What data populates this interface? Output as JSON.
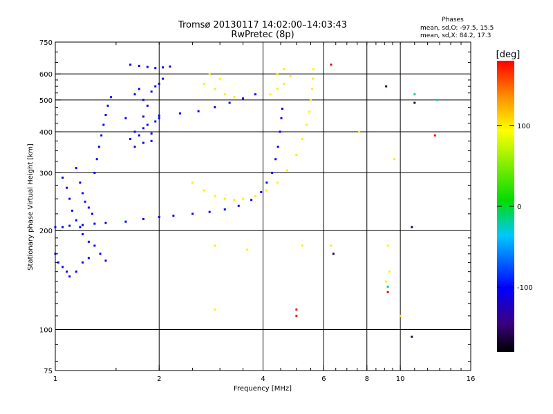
{
  "chart_data": {
    "type": "scatter",
    "title": "Tromsø 20130117 14:02:00–14:03:43",
    "subtitle": "RwPretec (8p)",
    "stats": {
      "heading": "Phases",
      "line1": "mean, sd,O: -97.5, 15.5",
      "line2": "mean, sd,X:  84.2, 17.3"
    },
    "xlabel": "Frequency [MHz]",
    "ylabel": "Stationary phase Virtual Height [km]",
    "x_scale": "log",
    "y_scale": "log",
    "xlim": [
      1,
      16
    ],
    "ylim": [
      75,
      750
    ],
    "x_ticks": [
      1,
      2,
      4,
      6,
      8,
      10,
      16
    ],
    "x_tick_labels": [
      "1",
      "2",
      "4",
      "6",
      "8",
      "10",
      "16"
    ],
    "x_gridlines": [
      2,
      4,
      6,
      8,
      10
    ],
    "y_ticks": [
      75,
      100,
      200,
      300,
      400,
      500,
      600,
      750
    ],
    "y_tick_labels": [
      "75",
      "100",
      "200",
      "300",
      "400",
      "500",
      "600",
      "750"
    ],
    "y_gridlines": [
      100,
      200,
      300,
      400,
      500,
      600
    ],
    "colorbar": {
      "label": "[deg]",
      "range": [
        -180,
        180
      ],
      "ticks": [
        100,
        0,
        -100
      ],
      "tick_labels": [
        "100",
        "0",
        "-100"
      ]
    },
    "traces": [
      {
        "name": "",
        "phase": -100,
        "points": [
          [
            1.0,
            205
          ],
          [
            1.05,
            205
          ],
          [
            1.1,
            207
          ],
          [
            1.2,
            208
          ],
          [
            1.3,
            210
          ],
          [
            1.4,
            211
          ],
          [
            1.6,
            213
          ],
          [
            1.8,
            217
          ],
          [
            2.0,
            220
          ],
          [
            2.2,
            222
          ],
          [
            2.5,
            225
          ],
          [
            2.8,
            228
          ],
          [
            3.1,
            232
          ],
          [
            3.4,
            238
          ],
          [
            3.7,
            248
          ],
          [
            3.95,
            262
          ],
          [
            4.1,
            280
          ],
          [
            4.25,
            300
          ],
          [
            4.35,
            330
          ],
          [
            4.42,
            360
          ],
          [
            4.48,
            400
          ],
          [
            4.52,
            440
          ],
          [
            4.55,
            470
          ]
        ]
      },
      {
        "name": "",
        "phase": -100,
        "points": [
          [
            1.6,
            440
          ],
          [
            1.8,
            445
          ],
          [
            2.0,
            448
          ],
          [
            2.3,
            455
          ],
          [
            2.6,
            462
          ],
          [
            2.9,
            475
          ],
          [
            3.2,
            490
          ],
          [
            3.5,
            505
          ],
          [
            3.8,
            520
          ]
        ]
      },
      {
        "name": "",
        "phase": -100,
        "points": [
          [
            1.05,
            290
          ],
          [
            1.08,
            270
          ],
          [
            1.1,
            250
          ],
          [
            1.12,
            230
          ],
          [
            1.15,
            215
          ],
          [
            1.18,
            205
          ],
          [
            1.2,
            195
          ],
          [
            1.25,
            185
          ],
          [
            1.3,
            180
          ],
          [
            1.35,
            170
          ],
          [
            1.4,
            162
          ]
        ]
      },
      {
        "name": "",
        "phase": -100,
        "points": [
          [
            1.0,
            170
          ],
          [
            1.02,
            160
          ],
          [
            1.05,
            155
          ],
          [
            1.08,
            150
          ],
          [
            1.1,
            145
          ],
          [
            1.15,
            150
          ],
          [
            1.2,
            160
          ],
          [
            1.25,
            165
          ]
        ]
      },
      {
        "name": "",
        "phase": -100,
        "points": [
          [
            1.3,
            300
          ],
          [
            1.32,
            330
          ],
          [
            1.34,
            360
          ],
          [
            1.36,
            390
          ],
          [
            1.38,
            420
          ],
          [
            1.4,
            450
          ],
          [
            1.42,
            480
          ],
          [
            1.45,
            510
          ]
        ]
      },
      {
        "name": "",
        "phase": -100,
        "points": [
          [
            1.15,
            310
          ],
          [
            1.18,
            280
          ],
          [
            1.2,
            260
          ],
          [
            1.22,
            245
          ],
          [
            1.25,
            235
          ],
          [
            1.28,
            225
          ]
        ]
      },
      {
        "name": "",
        "phase": -100,
        "points": [
          [
            1.65,
            380
          ],
          [
            1.7,
            400
          ],
          [
            1.75,
            390
          ],
          [
            1.8,
            410
          ],
          [
            1.85,
            420
          ],
          [
            1.9,
            395
          ],
          [
            1.95,
            430
          ],
          [
            2.0,
            440
          ],
          [
            1.7,
            360
          ],
          [
            1.8,
            370
          ],
          [
            1.9,
            375
          ]
        ]
      },
      {
        "name": "",
        "phase": -100,
        "points": [
          [
            1.7,
            520
          ],
          [
            1.75,
            540
          ],
          [
            1.8,
            500
          ],
          [
            1.85,
            480
          ],
          [
            1.9,
            530
          ],
          [
            1.95,
            550
          ],
          [
            2.0,
            560
          ],
          [
            2.05,
            580
          ]
        ]
      },
      {
        "name": "",
        "phase": -100,
        "points": [
          [
            1.65,
            640
          ],
          [
            1.75,
            635
          ],
          [
            1.85,
            630
          ],
          [
            1.95,
            625
          ],
          [
            2.05,
            628
          ],
          [
            2.15,
            632
          ]
        ]
      },
      {
        "name": "",
        "phase": 100,
        "points": [
          [
            2.5,
            280
          ],
          [
            2.7,
            265
          ],
          [
            2.9,
            255
          ],
          [
            3.1,
            250
          ],
          [
            3.3,
            248
          ],
          [
            3.5,
            250
          ],
          [
            3.8,
            255
          ],
          [
            4.1,
            265
          ],
          [
            4.4,
            280
          ],
          [
            4.7,
            305
          ],
          [
            5.0,
            340
          ],
          [
            5.2,
            380
          ],
          [
            5.35,
            420
          ],
          [
            5.45,
            460
          ],
          [
            5.5,
            500
          ],
          [
            5.55,
            540
          ],
          [
            5.58,
            580
          ],
          [
            5.6,
            620
          ]
        ]
      },
      {
        "name": "",
        "phase": 100,
        "points": [
          [
            4.2,
            520
          ],
          [
            4.4,
            540
          ],
          [
            4.6,
            560
          ],
          [
            4.8,
            590
          ],
          [
            4.6,
            620
          ],
          [
            4.4,
            600
          ]
        ]
      },
      {
        "name": "",
        "phase": 100,
        "points": [
          [
            2.7,
            560
          ],
          [
            2.9,
            540
          ],
          [
            3.1,
            520
          ],
          [
            3.3,
            510
          ],
          [
            2.8,
            600
          ],
          [
            3.0,
            580
          ]
        ]
      },
      {
        "name": "",
        "phase": 100,
        "points": [
          [
            2.9,
            180
          ],
          [
            3.6,
            175
          ],
          [
            5.2,
            180
          ],
          [
            9.2,
            180
          ],
          [
            9.1,
            140
          ],
          [
            9.3,
            150
          ],
          [
            10.0,
            110
          ],
          [
            2.9,
            115
          ],
          [
            9.6,
            330
          ],
          [
            7.6,
            400
          ],
          [
            6.3,
            180
          ]
        ]
      },
      {
        "name": "",
        "phase": 180,
        "points": [
          [
            5.0,
            115
          ],
          [
            5.0,
            110
          ],
          [
            6.3,
            640
          ],
          [
            9.2,
            130
          ],
          [
            12.6,
            390
          ]
        ]
      },
      {
        "name": "",
        "phase": -160,
        "points": [
          [
            10.8,
            95
          ],
          [
            6.4,
            170
          ],
          [
            10.8,
            205
          ],
          [
            11.0,
            490
          ],
          [
            9.1,
            550
          ]
        ]
      },
      {
        "name": "",
        "phase": -20,
        "points": [
          [
            9.2,
            135
          ],
          [
            11.0,
            520
          ],
          [
            12.8,
            500
          ]
        ]
      }
    ]
  }
}
